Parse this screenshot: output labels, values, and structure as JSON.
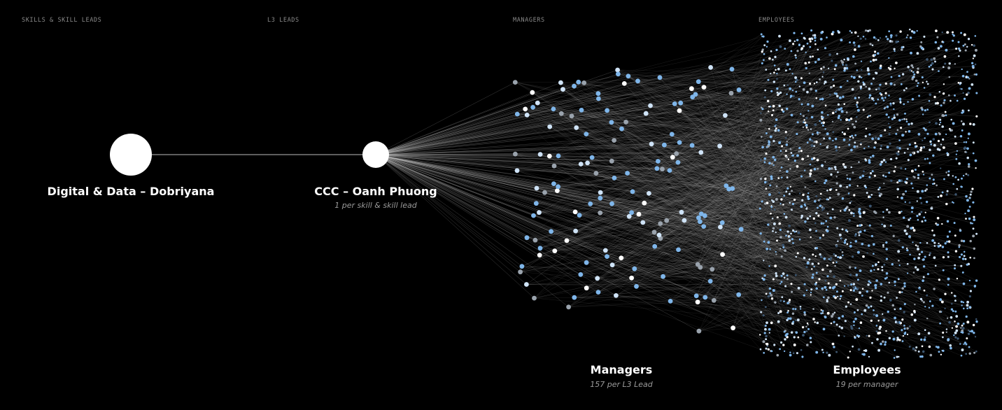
{
  "columns": {
    "skills": "SKILLS & SKILL LEADS",
    "l3": "L3 LEADS",
    "managers": "MANAGERS",
    "employees": "EMPLOYEES"
  },
  "nodes": {
    "skill_lead": {
      "title": "Digital & Data – Dobriyana"
    },
    "l3_lead": {
      "title": "CCC – Oanh Phuong",
      "subtitle": "1 per skill & skill lead"
    },
    "managers": {
      "title": "Managers",
      "subtitle": "157 per L3 Lead",
      "count": 157
    },
    "employees": {
      "title": "Employees",
      "subtitle": "19 per manager",
      "per_manager": 19
    }
  },
  "colors": {
    "background": "#000000",
    "node": "#ffffff",
    "edge": "#c8c8c8",
    "dot_blue": "#7fb6ea",
    "dot_light": "#cfe3f7",
    "dot_white": "#ffffff",
    "dot_gray": "#9aa3ad",
    "dot_dark": "#3d5670"
  }
}
